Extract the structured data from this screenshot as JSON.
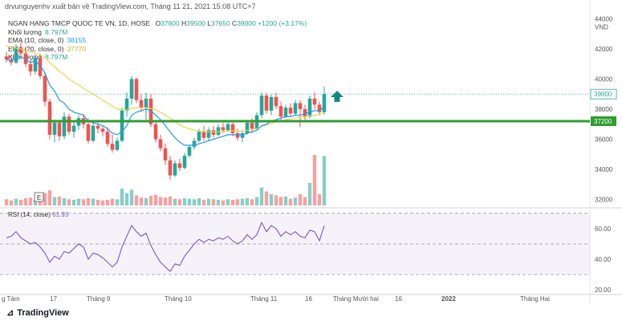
{
  "header": {
    "text": "drvunguyenhv xuất bản về TradingView.com, Tháng 11 21, 2021 15:08 UTC+7"
  },
  "legend": {
    "main": "NGAN HANG TMCP QUOC TE VN, 1D, HOSE",
    "o_label": "O",
    "o_value": "37800",
    "h_label": "H",
    "h_value": "39500",
    "l_label": "L",
    "l_value": "37650",
    "c_label": "C",
    "c_value": "39000",
    "change": "+1200 (+3.17%)",
    "rows": [
      {
        "label": "Khối lượng",
        "value": "8.797M",
        "color": "#26a69a"
      },
      {
        "label": "EMA (10, close, 0)",
        "value": "38155",
        "color": "#2196f3"
      },
      {
        "label": "EMA (20, close, 0)",
        "value": "37770",
        "color": "#e6d84a"
      },
      {
        "label": "Khối lượng",
        "value": "8.797M",
        "color": "#26a69a"
      }
    ]
  },
  "price_axis": {
    "ticks": [
      "44000",
      "VND",
      "42000",
      "40000",
      "38000",
      "36000",
      "34000",
      "32000"
    ],
    "last_price_label": "39000",
    "support_label": "37200"
  },
  "rsi": {
    "label": "RSI (14, close)",
    "value": "61.93",
    "ticks": [
      "60.00",
      "40.00",
      "20.00"
    ]
  },
  "time_axis": {
    "labels": [
      "g Tám",
      "17",
      "Tháng 9",
      "Tháng 10",
      "Tháng 11",
      "16",
      "Tháng Mười hai",
      "16",
      "2022",
      "Tháng Hai"
    ]
  },
  "tools": {
    "e_button": "E"
  },
  "footer": {
    "brand": "TradingView"
  },
  "colors": {
    "up": "#26a69a",
    "down": "#ef5350",
    "ema10": "#2196f3",
    "ema20": "#e6d84a",
    "support": "#2e9e2e",
    "rsi": "#7e57c2",
    "arrow": "#138a7e"
  },
  "chart_data": {
    "type": "candlestick",
    "title": "NGAN HANG TMCP QUOC TE VN, 1D, HOSE",
    "ylim": [
      31500,
      44500
    ],
    "support_level": 37200,
    "last_close": 39000,
    "candles": [
      [
        41500,
        41800,
        41100,
        41300
      ],
      [
        41300,
        41600,
        40900,
        41100
      ],
      [
        41100,
        42300,
        41000,
        42100
      ],
      [
        42100,
        42500,
        41500,
        41700
      ],
      [
        41700,
        42100,
        40800,
        41000
      ],
      [
        41000,
        41300,
        40200,
        40500
      ],
      [
        40500,
        41600,
        40300,
        41400
      ],
      [
        41400,
        41700,
        40000,
        40200
      ],
      [
        40200,
        40400,
        38200,
        38500
      ],
      [
        38500,
        38700,
        36000,
        36300
      ],
      [
        36300,
        37300,
        35800,
        37100
      ],
      [
        37100,
        37300,
        35900,
        36200
      ],
      [
        36200,
        37800,
        36000,
        37500
      ],
      [
        37500,
        37700,
        36300,
        36500
      ],
      [
        36500,
        37200,
        36100,
        36900
      ],
      [
        36900,
        37600,
        36600,
        37400
      ],
      [
        37400,
        37700,
        36700,
        37000
      ],
      [
        37000,
        37400,
        35700,
        35900
      ],
      [
        35900,
        37100,
        35800,
        36900
      ],
      [
        36900,
        37300,
        36400,
        36700
      ],
      [
        36700,
        36900,
        36200,
        36500
      ],
      [
        36500,
        36800,
        35500,
        35700
      ],
      [
        35700,
        36300,
        35100,
        35300
      ],
      [
        35300,
        36100,
        35200,
        35900
      ],
      [
        35900,
        38100,
        35800,
        37900
      ],
      [
        37900,
        39100,
        37500,
        38700
      ],
      [
        38700,
        40200,
        38300,
        40000
      ],
      [
        40000,
        40100,
        38400,
        38600
      ],
      [
        38600,
        39000,
        37800,
        38100
      ],
      [
        38100,
        39100,
        37300,
        38700
      ],
      [
        38700,
        39000,
        36800,
        37000
      ],
      [
        37000,
        37200,
        35800,
        36000
      ],
      [
        36000,
        36300,
        35200,
        35400
      ],
      [
        35400,
        35700,
        34300,
        34600
      ],
      [
        34600,
        34900,
        33300,
        33600
      ],
      [
        33600,
        34600,
        33500,
        34400
      ],
      [
        34400,
        34700,
        33900,
        34100
      ],
      [
        34100,
        35100,
        34000,
        34900
      ],
      [
        34900,
        35600,
        34800,
        35500
      ],
      [
        35500,
        36100,
        35300,
        35900
      ],
      [
        35900,
        36700,
        35800,
        36500
      ],
      [
        36500,
        36900,
        35900,
        36100
      ],
      [
        36100,
        36800,
        35900,
        36600
      ],
      [
        36600,
        36900,
        36100,
        36300
      ],
      [
        36300,
        37000,
        36200,
        36800
      ],
      [
        36800,
        37100,
        36400,
        36600
      ],
      [
        36600,
        37200,
        36500,
        37000
      ],
      [
        37000,
        37100,
        36200,
        36400
      ],
      [
        36400,
        36700,
        35900,
        36100
      ],
      [
        36100,
        36600,
        35800,
        36400
      ],
      [
        36400,
        37300,
        36300,
        37100
      ],
      [
        37100,
        37400,
        36400,
        36700
      ],
      [
        36700,
        37800,
        36600,
        37600
      ],
      [
        37600,
        39100,
        37400,
        38900
      ],
      [
        38900,
        39100,
        37700,
        37900
      ],
      [
        37900,
        39000,
        37600,
        38800
      ],
      [
        38800,
        39100,
        38000,
        38200
      ],
      [
        38200,
        38500,
        37300,
        37500
      ],
      [
        37500,
        38300,
        37400,
        38100
      ],
      [
        38100,
        38400,
        37500,
        37700
      ],
      [
        37700,
        38600,
        37600,
        38400
      ],
      [
        38400,
        38600,
        36800,
        38000
      ],
      [
        38000,
        38300,
        37300,
        37500
      ],
      [
        37500,
        38900,
        37400,
        38700
      ],
      [
        38700,
        39100,
        38000,
        38300
      ],
      [
        38300,
        38500,
        37600,
        37800
      ],
      [
        37800,
        39500,
        37650,
        39000
      ]
    ],
    "ema10": [
      41300,
      41200,
      41400,
      41500,
      41300,
      41100,
      41200,
      40900,
      40400,
      39600,
      39200,
      38600,
      38400,
      38000,
      37800,
      37700,
      37600,
      37200,
      37100,
      37000,
      36900,
      36700,
      36400,
      36300,
      36500,
      36900,
      37600,
      37800,
      37900,
      38000,
      37900,
      37600,
      37300,
      36900,
      36500,
      36100,
      35800,
      35600,
      35600,
      35600,
      35700,
      35800,
      35900,
      36000,
      36100,
      36200,
      36300,
      36300,
      36300,
      36300,
      36400,
      36500,
      36600,
      36900,
      37000,
      37200,
      37300,
      37400,
      37500,
      37500,
      37600,
      37600,
      37700,
      37800,
      37900,
      37900,
      38155
    ],
    "ema20": [
      42200,
      42100,
      42050,
      42000,
      41900,
      41800,
      41700,
      41600,
      41400,
      41100,
      40800,
      40500,
      40300,
      40000,
      39800,
      39600,
      39400,
      39200,
      39000,
      38800,
      38600,
      38400,
      38200,
      38000,
      37950,
      37950,
      38050,
      38100,
      38100,
      38100,
      38050,
      37950,
      37800,
      37600,
      37400,
      37200,
      36950,
      36800,
      36700,
      36600,
      36550,
      36500,
      36500,
      36500,
      36500,
      36500,
      36550,
      36550,
      36550,
      36550,
      36600,
      36650,
      36700,
      36850,
      36950,
      37050,
      37150,
      37200,
      37300,
      37350,
      37400,
      37450,
      37500,
      37550,
      37600,
      37650,
      37770
    ],
    "volume_ylim": [
      0,
      10000000
    ],
    "volume": [
      1100000,
      900000,
      1200000,
      1000000,
      1300000,
      1400000,
      1000000,
      1200000,
      2200000,
      2700000,
      1500000,
      1600000,
      1300000,
      1100000,
      1000000,
      1200000,
      1100000,
      1300000,
      1200000,
      1000000,
      900000,
      1000000,
      1200000,
      1100000,
      3000000,
      2200000,
      2800000,
      1800000,
      1400000,
      1300000,
      1700000,
      1900000,
      1500000,
      1400000,
      1600000,
      1200000,
      1100000,
      1300000,
      1200000,
      1100000,
      1300000,
      1000000,
      1200000,
      1100000,
      1000000,
      900000,
      1100000,
      1000000,
      1100000,
      1200000,
      1300000,
      1100000,
      1500000,
      3200000,
      2500000,
      2000000,
      1800000,
      1500000,
      1600000,
      1200000,
      1400000,
      2000000,
      1500000,
      4000000,
      9000000,
      2000000,
      8797000
    ],
    "rsi_ylim": [
      18,
      72
    ],
    "rsi_values": [
      54,
      55,
      58,
      54,
      52,
      50,
      51,
      48,
      44,
      38,
      42,
      40,
      45,
      44,
      47,
      50,
      48,
      40,
      44,
      43,
      41,
      38,
      35,
      38,
      48,
      55,
      62,
      58,
      55,
      57,
      49,
      43,
      38,
      35,
      32,
      37,
      36,
      42,
      46,
      50,
      53,
      51,
      53,
      52,
      54,
      53,
      55,
      52,
      50,
      52,
      56,
      53,
      56,
      64,
      58,
      62,
      60,
      55,
      58,
      56,
      58,
      55,
      54,
      59,
      58,
      52,
      61.93
    ]
  }
}
